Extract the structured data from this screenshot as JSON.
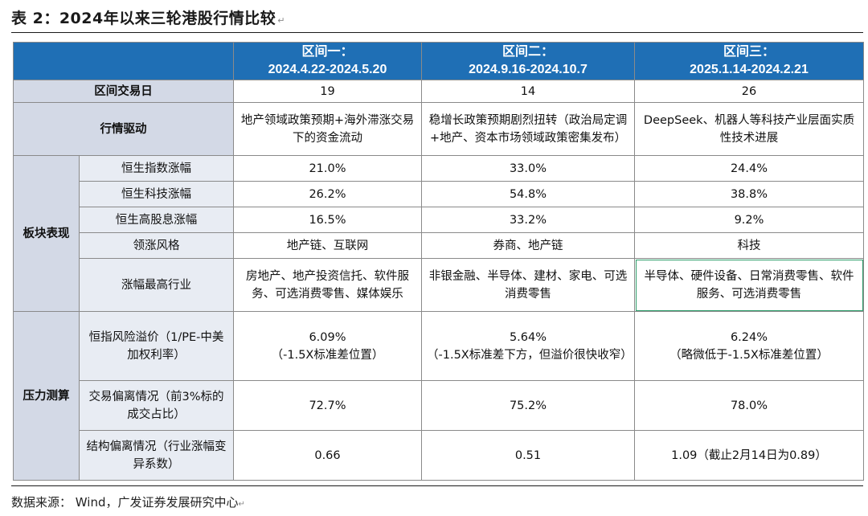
{
  "title": "表 2：2024年以来三轮港股行情比较",
  "header": {
    "periods": [
      {
        "name": "区间一：",
        "range": "2024.4.22-2024.5.20"
      },
      {
        "name": "区间二：",
        "range": "2024.9.16-2024.10.7"
      },
      {
        "name": "区间三：",
        "range": "2025.1.14-2024.2.21"
      }
    ]
  },
  "rows": {
    "trading_days": {
      "label": "区间交易日",
      "values": [
        "19",
        "14",
        "26"
      ]
    },
    "driver": {
      "label": "行情驱动",
      "values": [
        "地产领域政策预期+海外滞涨交易下的资金流动",
        "稳增长政策预期剧烈扭转（政治局定调+地产、资本市场领域政策密集发布）",
        "DeepSeek、机器人等科技产业层面实质性技术进展"
      ]
    }
  },
  "sector": {
    "group_label": "板块表现",
    "items": [
      {
        "label": "恒生指数涨幅",
        "values": [
          "21.0%",
          "33.0%",
          "24.4%"
        ]
      },
      {
        "label": "恒生科技涨幅",
        "values": [
          "26.2%",
          "54.8%",
          "38.8%"
        ]
      },
      {
        "label": "恒生高股息涨幅",
        "values": [
          "16.5%",
          "33.2%",
          "9.2%"
        ]
      },
      {
        "label": "领涨风格",
        "values": [
          "地产链、互联网",
          "券商、地产链",
          "科技"
        ]
      },
      {
        "label": "涨幅最高行业",
        "values": [
          "房地产、地产投资信托、软件服务、可选消费零售、媒体娱乐",
          "非银金融、半导体、建材、家电、可选消费零售",
          "半导体、硬件设备、日常消费零售、软件服务、可选消费零售"
        ]
      }
    ]
  },
  "pressure": {
    "group_label": "压力测算",
    "items": [
      {
        "label": "恒指风险溢价（1/PE-中美加权利率）",
        "values": [
          {
            "main": "6.09%",
            "note": "（-1.5X标准差位置）"
          },
          {
            "main": "5.64%",
            "note": "（-1.5X标准差下方，但溢价很快收窄）"
          },
          {
            "main": "6.24%",
            "note": "（略微低于-1.5X标准差位置）"
          }
        ]
      },
      {
        "label": "交易偏离情况（前3%标的成交占比）",
        "values": [
          "72.7%",
          "75.2%",
          "78.0%"
        ]
      },
      {
        "label": "结构偏离情况（行业涨幅变异系数）",
        "values": [
          "0.66",
          "0.51",
          "1.09（截止2月14日为0.89）"
        ]
      }
    ]
  },
  "footer": {
    "label": "数据来源：",
    "source": "Wind，广发证券发展研究中心"
  }
}
